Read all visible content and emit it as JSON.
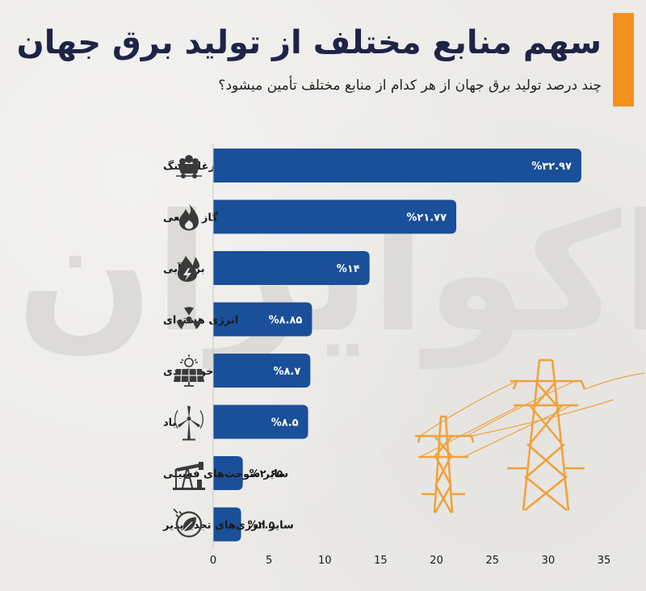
{
  "title": "سهم منابع مختلف از تولید برق جهان",
  "subtitle": "چند درصد تولید برق جهان از هر کدام از منابع مختلف تأمین میشود؟",
  "watermark": "اکوایران",
  "colors": {
    "bar": "#1a4f99",
    "accent": "#f5921e",
    "title": "#1f2347",
    "pylon": "#f0a13a"
  },
  "chart_data": {
    "type": "bar",
    "orientation": "horizontal",
    "categories": [
      "زغال‌سنگ",
      "گاز طبیعی",
      "برق آبی",
      "انرژی هسته‌ای",
      "خورشیدی",
      "باد",
      "سایر سوخت‌های فسیلی",
      "سایر انرژی‌های تجدیدپذیر"
    ],
    "values": [
      32.97,
      21.77,
      14,
      8.85,
      8.7,
      8.5,
      2.65,
      2.5
    ],
    "value_labels": [
      "%۳۲.۹۷",
      "%۲۱.۷۷",
      "%۱۴",
      "%۸.۸۵",
      "%۸.۷",
      "%۸.۵",
      "%۲.۶۵",
      "%۲.۵"
    ],
    "icons": [
      "coal-cart-icon",
      "flame-icon",
      "water-drop-bolt-icon",
      "radiation-icon",
      "solar-panel-icon",
      "wind-turbine-icon",
      "oil-pump-icon",
      "leaf-plug-icon"
    ],
    "xticks": [
      0,
      5,
      10,
      15,
      20,
      25,
      30,
      35
    ],
    "xtick_labels": [
      "0",
      "5",
      "10",
      "15",
      "20",
      "25",
      "30",
      "35"
    ],
    "xlim": [
      0,
      35
    ],
    "grid": false
  }
}
